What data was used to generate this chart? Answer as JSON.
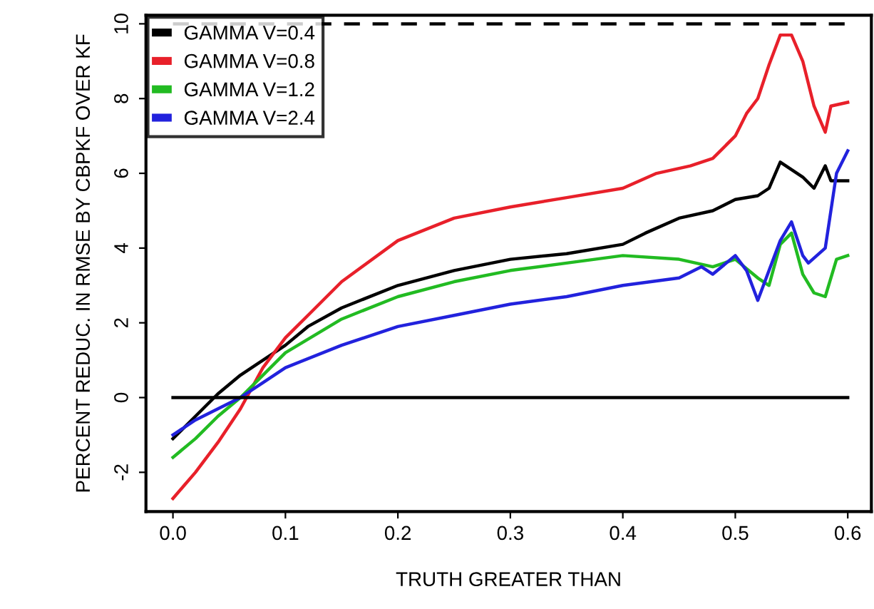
{
  "chart_data": {
    "type": "line",
    "xlabel": "TRUTH GREATER THAN",
    "ylabel": "PERCENT REDUC. IN RMSE BY CBPKF OVER KF",
    "xlim": [
      -0.024,
      0.621
    ],
    "ylim": [
      -3.05,
      10.23
    ],
    "xticks": [
      {
        "value": 0,
        "label": "0.0"
      },
      0.1,
      0.2,
      0.3,
      0.4,
      0.5,
      0.6
    ],
    "yticks": [
      -2,
      0,
      2,
      4,
      6,
      8,
      10
    ],
    "grid": false,
    "legend": "top left",
    "marker": "none",
    "line_style": "solid",
    "ref_lines": [
      {
        "axis": "y",
        "value": 10,
        "line_style": "dashed",
        "color": "#000000"
      },
      {
        "axis": "y",
        "value": 0,
        "line_style": "solid",
        "color": "#000000"
      }
    ],
    "series": [
      {
        "name": "GAMMA V=0.4",
        "color": "#000000",
        "x": [
          0,
          0.02,
          0.04,
          0.06,
          0.08,
          0.1,
          0.12,
          0.15,
          0.2,
          0.25,
          0.3,
          0.35,
          0.4,
          0.42,
          0.45,
          0.48,
          0.5,
          0.52,
          0.53,
          0.54,
          0.55,
          0.56,
          0.57,
          0.58,
          0.585,
          0.6
        ],
        "values": [
          -1.1,
          -0.5,
          0.1,
          0.6,
          1.0,
          1.4,
          1.9,
          2.4,
          3.0,
          3.4,
          3.7,
          3.85,
          4.1,
          4.4,
          4.8,
          5.0,
          5.3,
          5.4,
          5.6,
          6.3,
          6.1,
          5.9,
          5.6,
          6.2,
          5.8,
          5.8
        ]
      },
      {
        "name": "GAMMA V=0.8",
        "color": "#e8202a",
        "x": [
          0,
          0.02,
          0.04,
          0.06,
          0.08,
          0.1,
          0.12,
          0.15,
          0.2,
          0.25,
          0.3,
          0.35,
          0.4,
          0.43,
          0.46,
          0.48,
          0.5,
          0.51,
          0.52,
          0.53,
          0.54,
          0.55,
          0.56,
          0.57,
          0.58,
          0.585,
          0.6
        ],
        "values": [
          -2.7,
          -2.0,
          -1.2,
          -0.3,
          0.8,
          1.6,
          2.2,
          3.1,
          4.2,
          4.8,
          5.1,
          5.35,
          5.6,
          6.0,
          6.2,
          6.4,
          7.0,
          7.6,
          8.0,
          8.9,
          9.7,
          9.7,
          9.0,
          7.8,
          7.1,
          7.8,
          7.9
        ]
      },
      {
        "name": "GAMMA V=1.2",
        "color": "#22bb22",
        "x": [
          0,
          0.02,
          0.04,
          0.06,
          0.08,
          0.1,
          0.15,
          0.2,
          0.25,
          0.3,
          0.35,
          0.4,
          0.45,
          0.48,
          0.5,
          0.52,
          0.53,
          0.54,
          0.55,
          0.56,
          0.57,
          0.58,
          0.59,
          0.6
        ],
        "values": [
          -1.6,
          -1.1,
          -0.5,
          0.0,
          0.6,
          1.2,
          2.1,
          2.7,
          3.1,
          3.4,
          3.6,
          3.8,
          3.7,
          3.5,
          3.7,
          3.2,
          3.0,
          4.1,
          4.4,
          3.3,
          2.8,
          2.7,
          3.7,
          3.8
        ]
      },
      {
        "name": "GAMMA V=2.4",
        "color": "#2222dd",
        "x": [
          0,
          0.02,
          0.04,
          0.06,
          0.08,
          0.1,
          0.15,
          0.2,
          0.25,
          0.3,
          0.35,
          0.4,
          0.45,
          0.47,
          0.48,
          0.5,
          0.51,
          0.52,
          0.53,
          0.54,
          0.55,
          0.56,
          0.565,
          0.58,
          0.59,
          0.6
        ],
        "values": [
          -1.0,
          -0.6,
          -0.3,
          0.0,
          0.4,
          0.8,
          1.4,
          1.9,
          2.2,
          2.5,
          2.7,
          3.0,
          3.2,
          3.5,
          3.3,
          3.8,
          3.4,
          2.6,
          3.4,
          4.2,
          4.7,
          3.8,
          3.6,
          4.0,
          6.0,
          6.6
        ]
      }
    ]
  }
}
